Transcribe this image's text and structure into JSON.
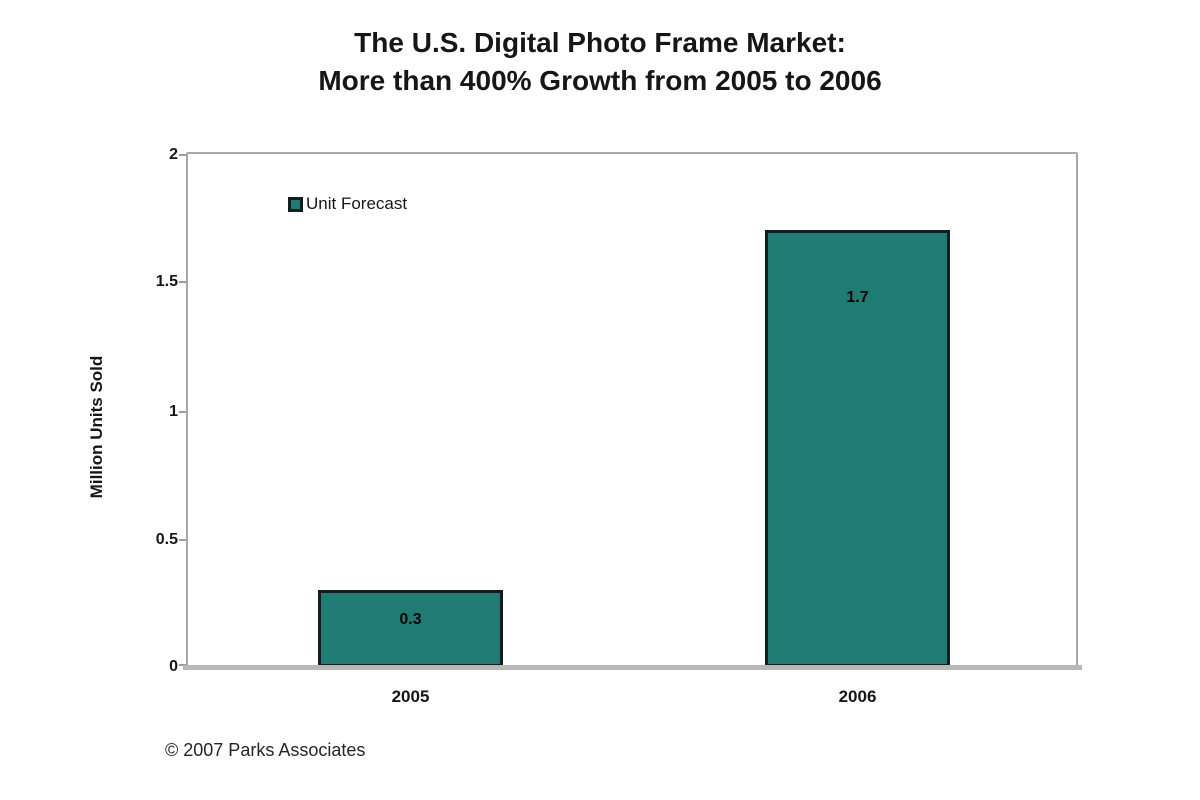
{
  "chart_data": {
    "type": "bar",
    "title_lines": [
      "The U.S. Digital Photo Frame Market:",
      "More than 400% Growth from 2005 to 2006"
    ],
    "categories": [
      "2005",
      "2006"
    ],
    "series": [
      {
        "name": "Unit Forecast",
        "values": [
          0.3,
          1.7
        ]
      }
    ],
    "bar_labels": [
      "0.3",
      "1.7"
    ],
    "xlabel": "",
    "ylabel": "Million Units Sold",
    "ylim": [
      0,
      2
    ],
    "ytick_labels": [
      "2",
      "1.5",
      "1",
      "0.5",
      "0"
    ],
    "legend": {
      "label": "Unit Forecast",
      "position": "inside-top-left"
    },
    "grid": false
  },
  "footer": {
    "copyright": "© 2007 Parks Associates"
  },
  "colors": {
    "bar_fill": "#1F7B74",
    "bar_border": "#111F1E",
    "plot_border": "#A8A8A8",
    "axis_line": "#B8B8B8",
    "title_text": "#161616"
  }
}
